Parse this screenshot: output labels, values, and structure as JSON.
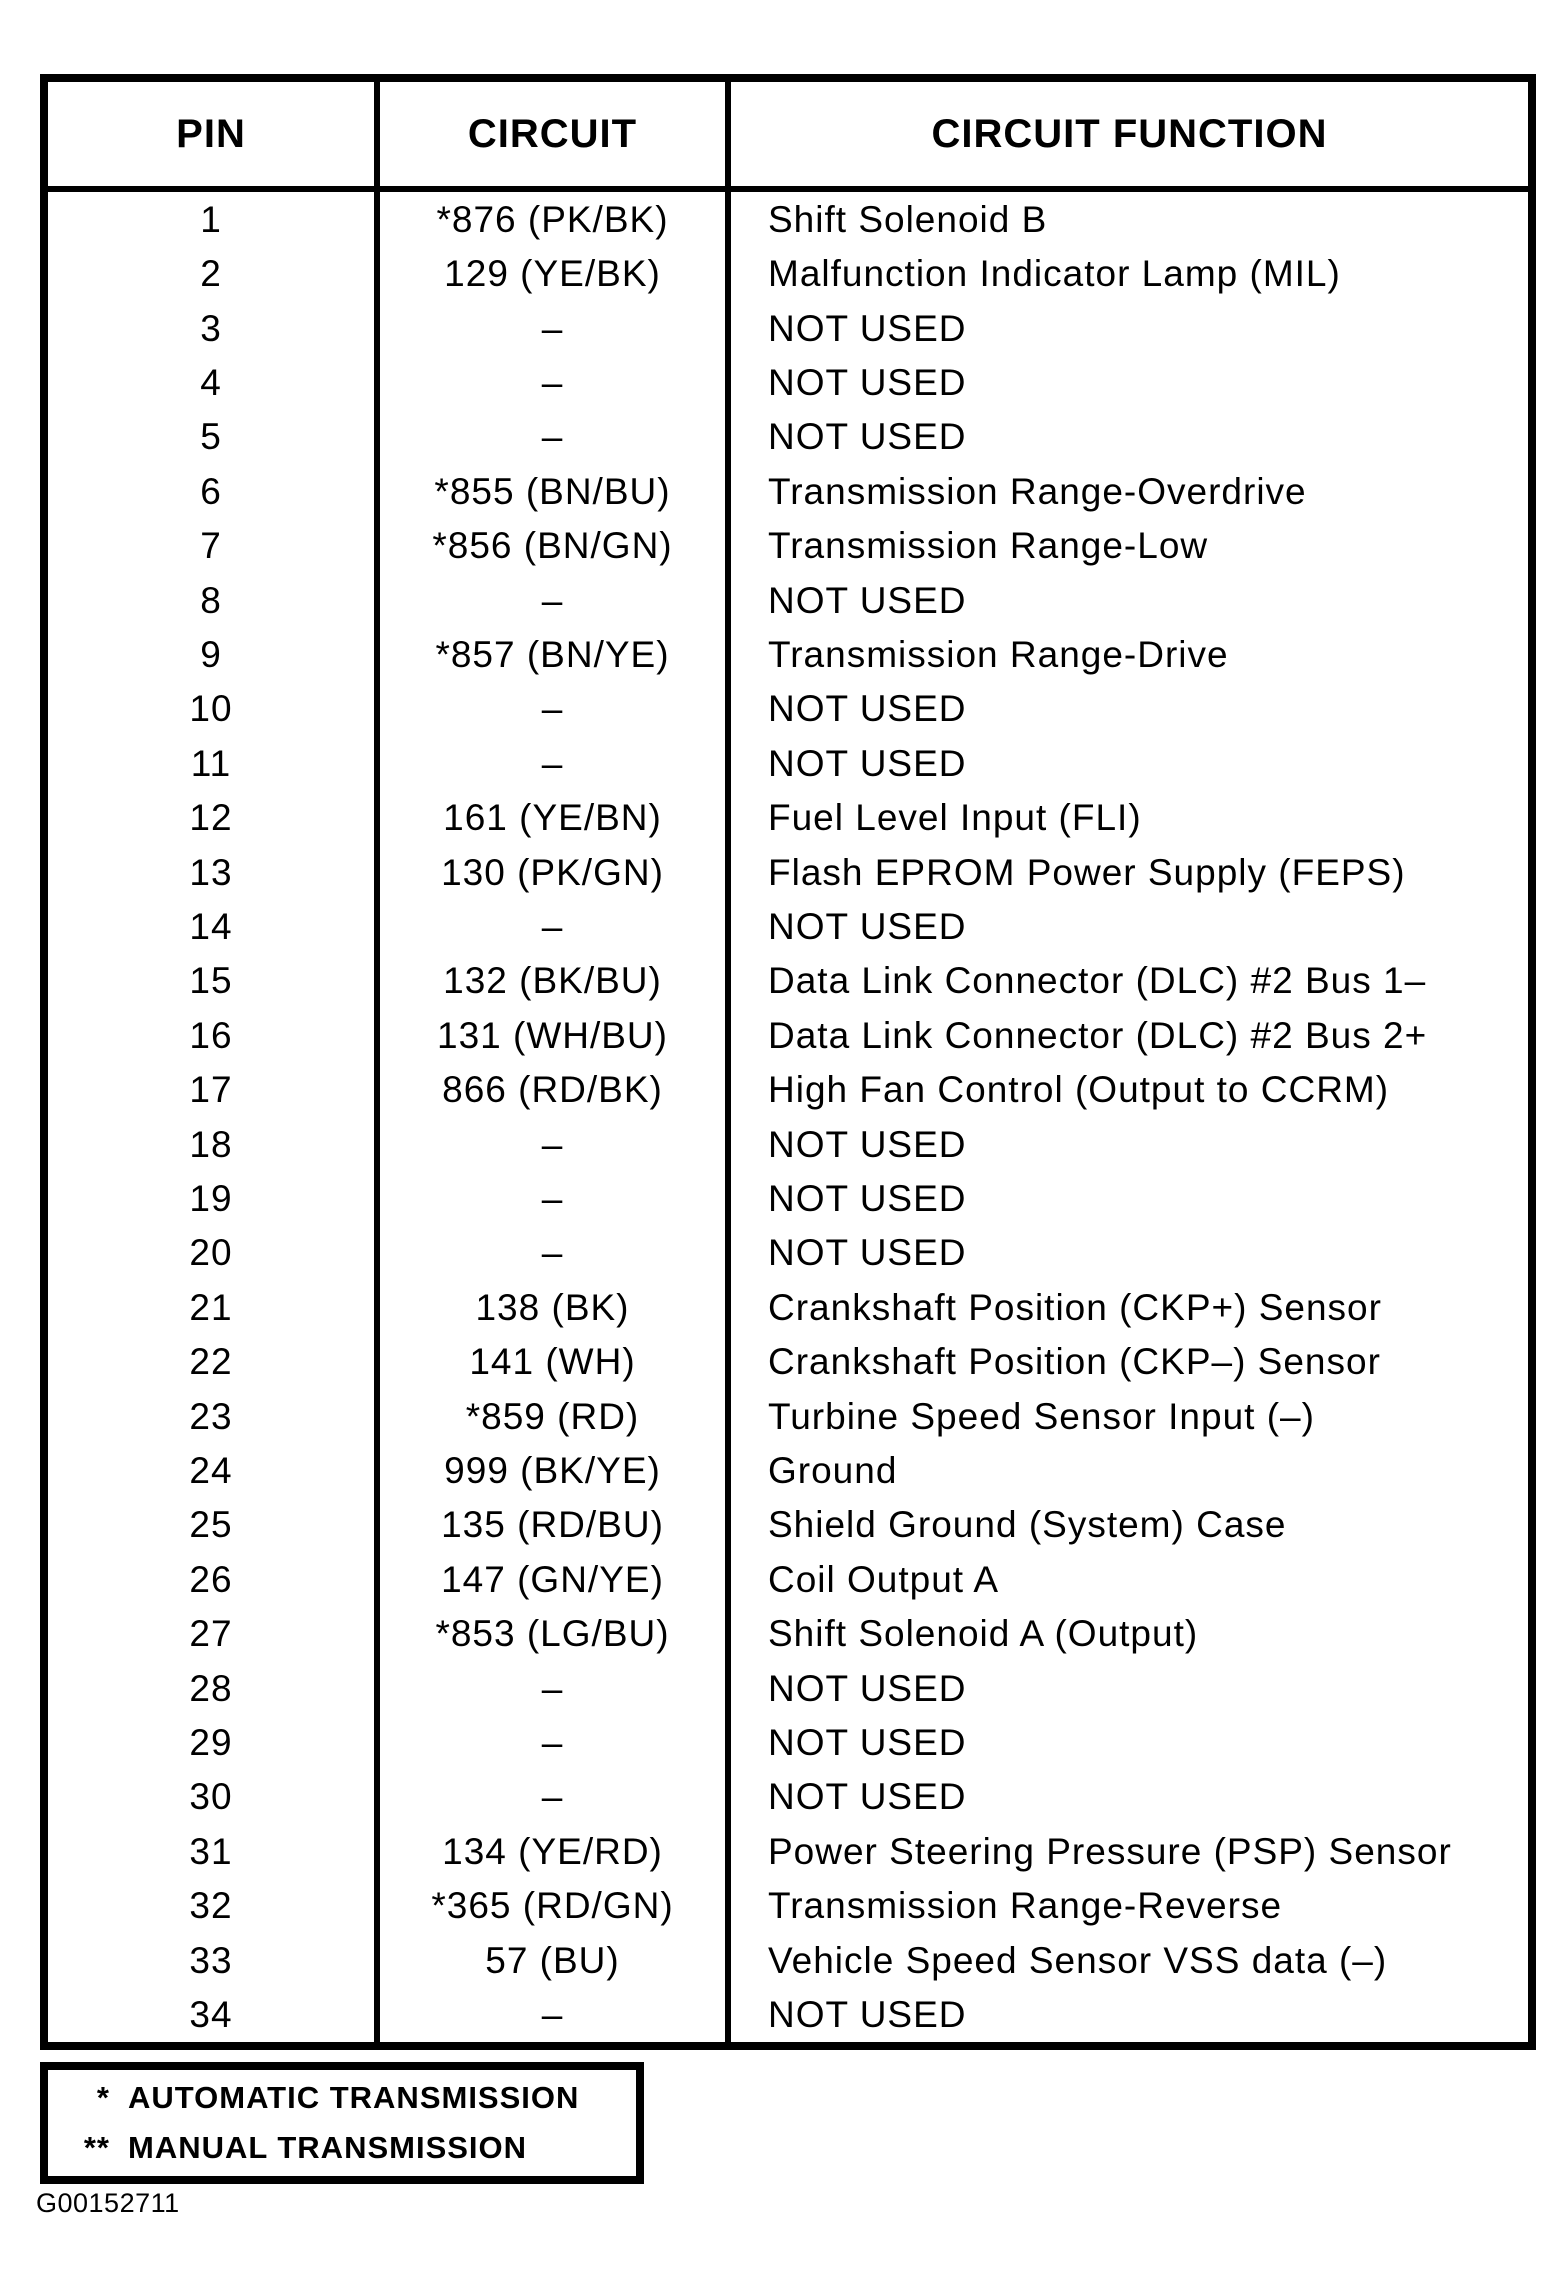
{
  "table": {
    "headers": [
      "PIN",
      "CIRCUIT",
      "CIRCUIT FUNCTION"
    ],
    "rows": [
      {
        "pin": "1",
        "circuit": "*876 (PK/BK)",
        "function": "Shift Solenoid B"
      },
      {
        "pin": "2",
        "circuit": "129 (YE/BK)",
        "function": "Malfunction Indicator Lamp (MIL)"
      },
      {
        "pin": "3",
        "circuit": "–",
        "function": "NOT USED"
      },
      {
        "pin": "4",
        "circuit": "–",
        "function": "NOT USED"
      },
      {
        "pin": "5",
        "circuit": "–",
        "function": "NOT USED"
      },
      {
        "pin": "6",
        "circuit": "*855 (BN/BU)",
        "function": "Transmission Range-Overdrive"
      },
      {
        "pin": "7",
        "circuit": "*856 (BN/GN)",
        "function": "Transmission Range-Low"
      },
      {
        "pin": "8",
        "circuit": "–",
        "function": "NOT USED"
      },
      {
        "pin": "9",
        "circuit": "*857 (BN/YE)",
        "function": "Transmission Range-Drive"
      },
      {
        "pin": "10",
        "circuit": "–",
        "function": "NOT USED"
      },
      {
        "pin": "11",
        "circuit": "–",
        "function": "NOT USED"
      },
      {
        "pin": "12",
        "circuit": "161 (YE/BN)",
        "function": "Fuel Level Input (FLI)"
      },
      {
        "pin": "13",
        "circuit": "130 (PK/GN)",
        "function": "Flash EPROM Power Supply (FEPS)"
      },
      {
        "pin": "14",
        "circuit": "–",
        "function": "NOT USED"
      },
      {
        "pin": "15",
        "circuit": "132 (BK/BU)",
        "function": "Data Link Connector (DLC) #2 Bus 1–"
      },
      {
        "pin": "16",
        "circuit": "131 (WH/BU)",
        "function": "Data Link Connector (DLC) #2 Bus 2+"
      },
      {
        "pin": "17",
        "circuit": "866 (RD/BK)",
        "function": "High Fan Control (Output to CCRM)"
      },
      {
        "pin": "18",
        "circuit": "–",
        "function": "NOT USED"
      },
      {
        "pin": "19",
        "circuit": "–",
        "function": "NOT USED"
      },
      {
        "pin": "20",
        "circuit": "–",
        "function": "NOT USED"
      },
      {
        "pin": "21",
        "circuit": "138 (BK)",
        "function": "Crankshaft Position (CKP+) Sensor"
      },
      {
        "pin": "22",
        "circuit": "141 (WH)",
        "function": "Crankshaft Position (CKP–) Sensor"
      },
      {
        "pin": "23",
        "circuit": "*859 (RD)",
        "function": "Turbine Speed Sensor Input (–)"
      },
      {
        "pin": "24",
        "circuit": "999 (BK/YE)",
        "function": "Ground"
      },
      {
        "pin": "25",
        "circuit": "135 (RD/BU)",
        "function": "Shield Ground (System) Case"
      },
      {
        "pin": "26",
        "circuit": "147 (GN/YE)",
        "function": "Coil Output A"
      },
      {
        "pin": "27",
        "circuit": "*853 (LG/BU)",
        "function": "Shift Solenoid A (Output)"
      },
      {
        "pin": "28",
        "circuit": "–",
        "function": "NOT USED"
      },
      {
        "pin": "29",
        "circuit": "–",
        "function": "NOT USED"
      },
      {
        "pin": "30",
        "circuit": "–",
        "function": "NOT USED"
      },
      {
        "pin": "31",
        "circuit": "134 (YE/RD)",
        "function": "Power Steering Pressure (PSP) Sensor"
      },
      {
        "pin": "32",
        "circuit": "*365 (RD/GN)",
        "function": "Transmission Range-Reverse"
      },
      {
        "pin": "33",
        "circuit": "57 (BU)",
        "function": "Vehicle Speed Sensor VSS data (–)"
      },
      {
        "pin": "34",
        "circuit": "–",
        "function": "NOT USED"
      }
    ]
  },
  "legend": {
    "items": [
      {
        "marker": "*",
        "label": "AUTOMATIC TRANSMISSION"
      },
      {
        "marker": "**",
        "label": "MANUAL TRANSMISSION"
      }
    ]
  },
  "figure_id": "G00152711",
  "colors": {
    "ink": "#000000",
    "paper": "#ffffff"
  }
}
